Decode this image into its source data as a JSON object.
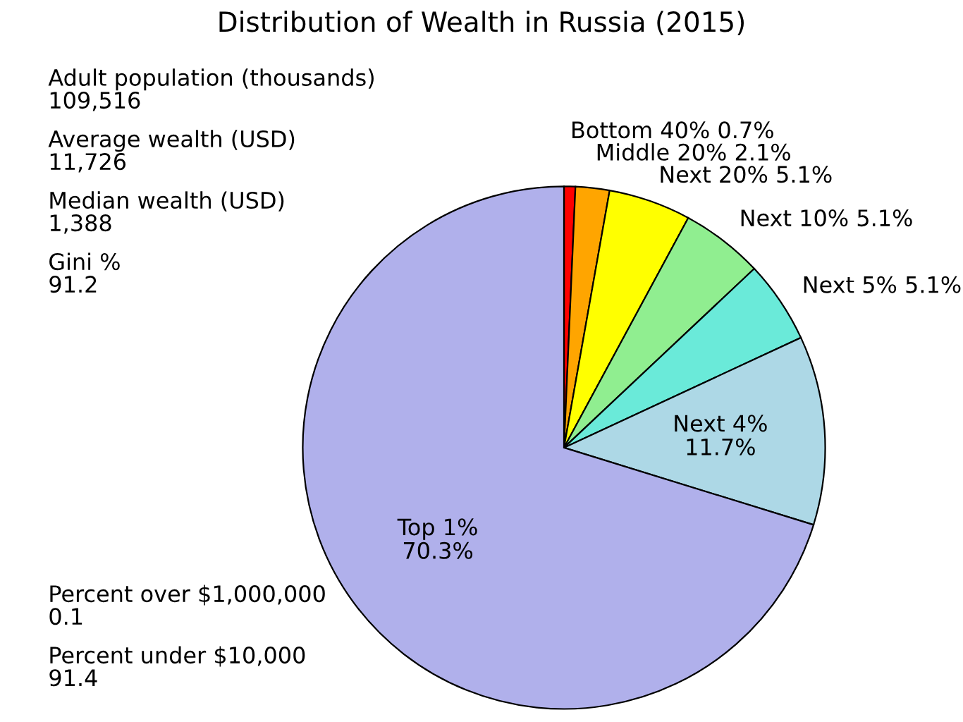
{
  "chart_data": {
    "type": "pie",
    "title": "Distribution of Wealth in Russia (2015)",
    "categories": [
      "Bottom 40%",
      "Middle 20%",
      "Next 20%",
      "Next 10%",
      "Next 5%",
      "Next 4%",
      "Top 1%"
    ],
    "values": [
      0.7,
      2.1,
      5.1,
      5.1,
      5.1,
      11.7,
      70.3
    ],
    "value_labels": [
      "0.7%",
      "2.1%",
      "5.1%",
      "5.1%",
      "5.1%",
      "11.7%",
      "70.3%"
    ],
    "colors": [
      "#ff0000",
      "#ffa500",
      "#ffff00",
      "#90ee90",
      "#6aead9",
      "#add8e6",
      "#b0b0eb"
    ],
    "legend": false,
    "annotations": [
      "Adult population (thousands)\n109,516",
      "Average wealth (USD)\n11,726",
      "Median wealth (USD)\n1,388",
      "Gini %\n91.2",
      "Percent over $1,000,000\n0.1",
      "Percent under $10,000\n91.4"
    ]
  }
}
